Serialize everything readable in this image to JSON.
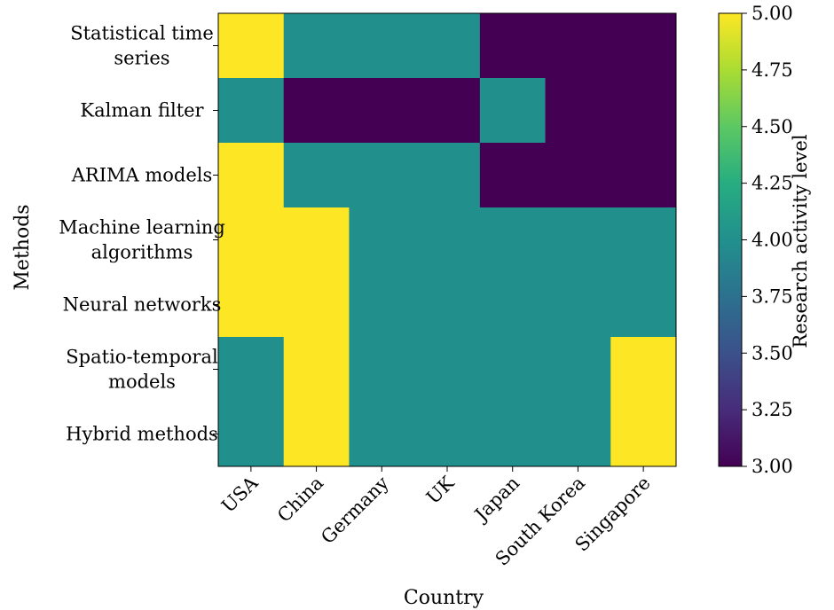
{
  "chart_data": {
    "type": "heatmap",
    "xlabel": "Country",
    "ylabel": "Methods",
    "x_categories": [
      "USA",
      "China",
      "Germany",
      "UK",
      "Japan",
      "South Korea",
      "Singapore"
    ],
    "y_categories": [
      [
        "Statistical time",
        "series"
      ],
      [
        "Kalman filter"
      ],
      [
        "ARIMA models"
      ],
      [
        "Machine learning",
        "algorithms"
      ],
      [
        "Neural networks"
      ],
      [
        "Spatio-temporal",
        "models"
      ],
      [
        "Hybrid methods"
      ]
    ],
    "values": [
      [
        5,
        4,
        4,
        4,
        3,
        3,
        3
      ],
      [
        4,
        3,
        3,
        3,
        4,
        3,
        3
      ],
      [
        5,
        4,
        4,
        4,
        3,
        3,
        3
      ],
      [
        5,
        5,
        4,
        4,
        4,
        4,
        4
      ],
      [
        5,
        5,
        4,
        4,
        4,
        4,
        4
      ],
      [
        4,
        5,
        4,
        4,
        4,
        4,
        5
      ],
      [
        4,
        5,
        4,
        4,
        4,
        4,
        5
      ]
    ],
    "colorbar": {
      "label": "Research activity level",
      "range": [
        3.0,
        5.0
      ],
      "ticks": [
        "3.00",
        "3.25",
        "3.50",
        "3.75",
        "4.00",
        "4.25",
        "4.50",
        "4.75",
        "5.00"
      ],
      "colormap": "viridis"
    },
    "colors": {
      "low": "#440154",
      "mid": "#21908c",
      "high": "#fde725"
    }
  }
}
